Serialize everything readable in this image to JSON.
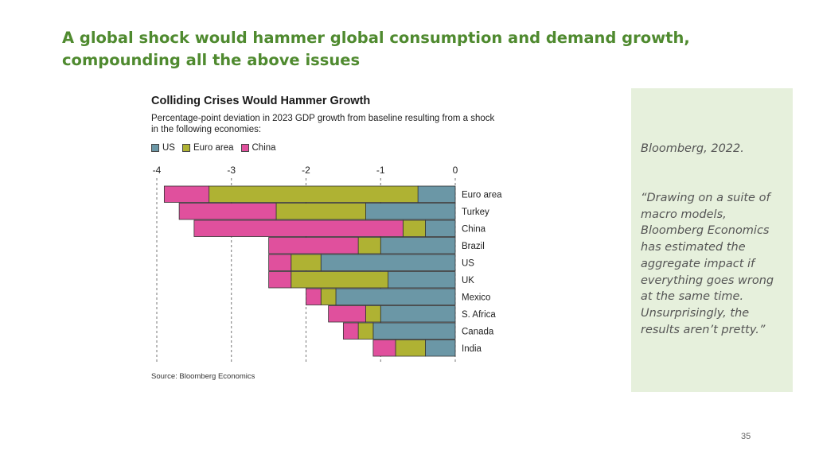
{
  "slide": {
    "title": "A global shock would hammer global consumption and demand growth, compounding all the above issues",
    "page_number": "35"
  },
  "side_panel": {
    "citation": "Bloomberg, 2022.",
    "quote": "“Drawing on a suite of macro models, Bloomberg Economics has estimated the aggregate impact if everything goes wrong at the same time. Unsurprisingly, the results aren’t pretty.”"
  },
  "chart_data": {
    "type": "bar",
    "orientation": "horizontal",
    "stacked": true,
    "title": "Colliding Crises Would Hammer Growth",
    "subtitle": "Percentage-point deviation in 2023 GDP growth from baseline resulting from a shock in the following economies:",
    "source": "Source: Bloomberg Economics",
    "xlim": [
      -4,
      0
    ],
    "x_ticks": [
      -4,
      -3,
      -2,
      -1,
      0
    ],
    "x_tick_labels": [
      "-4",
      "-3",
      "-2",
      "-1",
      "0"
    ],
    "grid": "dashed vertical lines",
    "legend_position": "top-left",
    "categories": [
      "Euro area",
      "Turkey",
      "China",
      "Brazil",
      "US",
      "UK",
      "Mexico",
      "S. Africa",
      "Canada",
      "India"
    ],
    "series": [
      {
        "name": "US",
        "color": "#6b97a6",
        "values": [
          -0.5,
          -1.2,
          -0.4,
          -1.0,
          -1.8,
          -0.9,
          -1.6,
          -1.0,
          -1.1,
          -0.4
        ]
      },
      {
        "name": "Euro area",
        "color": "#afb233",
        "values": [
          -2.8,
          -1.2,
          -0.3,
          -0.3,
          -0.4,
          -1.3,
          -0.2,
          -0.2,
          -0.2,
          -0.4
        ]
      },
      {
        "name": "China",
        "color": "#e0509d",
        "values": [
          -0.6,
          -1.3,
          -2.8,
          -1.2,
          -0.3,
          -0.3,
          -0.2,
          -0.5,
          -0.2,
          -0.3
        ]
      }
    ]
  }
}
